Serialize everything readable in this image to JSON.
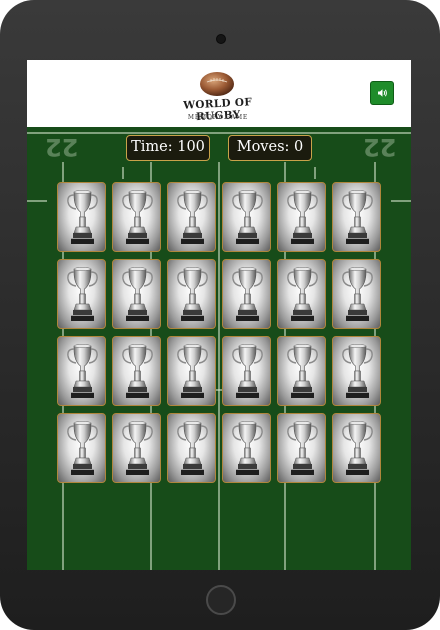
{
  "header": {
    "logo_title": "WORLD OF RUGBY",
    "logo_subtitle": "MEMORY GAME",
    "sound_icon": "speaker-icon"
  },
  "status": {
    "timer_label": "Time:",
    "timer_value": "100",
    "moves_label": "Moves:",
    "moves_value": "0"
  },
  "field": {
    "left_marking": "22",
    "right_marking": "22"
  },
  "board": {
    "rows": 4,
    "columns": 6,
    "card_back_icon": "trophy-icon",
    "cards": [
      "card-1",
      "card-2",
      "card-3",
      "card-4",
      "card-5",
      "card-6",
      "card-7",
      "card-8",
      "card-9",
      "card-10",
      "card-11",
      "card-12",
      "card-13",
      "card-14",
      "card-15",
      "card-16",
      "card-17",
      "card-18",
      "card-19",
      "card-20",
      "card-21",
      "card-22",
      "card-23",
      "card-24"
    ]
  },
  "colors": {
    "pitch": "#174c19",
    "line": "#d8e8d0",
    "sound_button": "#1f8c2a",
    "status_border": "#c9a24a",
    "card_border": "#b0863c"
  }
}
